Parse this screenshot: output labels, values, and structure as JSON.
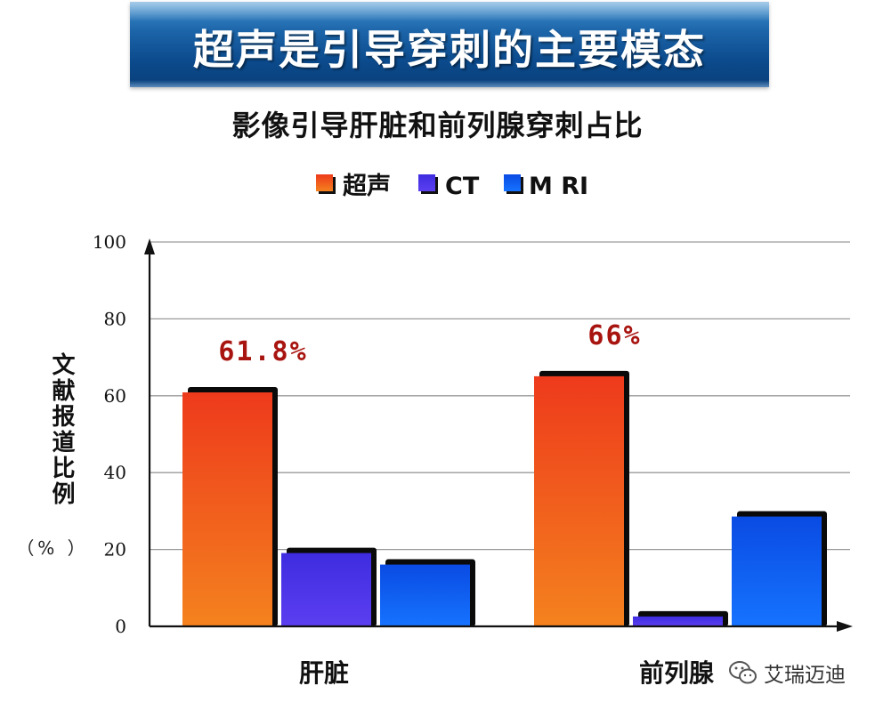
{
  "banner": {
    "title": "超声是引导穿刺的主要模态"
  },
  "chart_data": {
    "type": "bar",
    "title": "影像引导肝脏和前列腺穿刺占比",
    "ylabel": "文献报道比例",
    "yunit": "（% ）",
    "xlabel": "",
    "categories": [
      "肝脏",
      "前列腺"
    ],
    "series": [
      {
        "name": "超声",
        "values": [
          61.8,
          66
        ]
      },
      {
        "name": "CT",
        "values": [
          20,
          3.5
        ]
      },
      {
        "name": "M RI",
        "values": [
          17,
          29.5
        ]
      }
    ],
    "data_labels": [
      "61.8%",
      "66%"
    ],
    "ylim": [
      0,
      100
    ],
    "yticks": [
      "0",
      "20",
      "40",
      "60",
      "80",
      "100"
    ],
    "grid": true,
    "legend_position": "top-center",
    "colors": {
      "超声": [
        "#f4821e",
        "#ee3a1c"
      ],
      "CT": [
        "#5b3ff0",
        "#3f2ce0"
      ],
      "M RI": [
        "#1673ff",
        "#0a4be3"
      ],
      "data_label": "#a8140f"
    }
  },
  "watermark": {
    "text": "艾瑞迈迪",
    "icon": "wechat-icon"
  }
}
